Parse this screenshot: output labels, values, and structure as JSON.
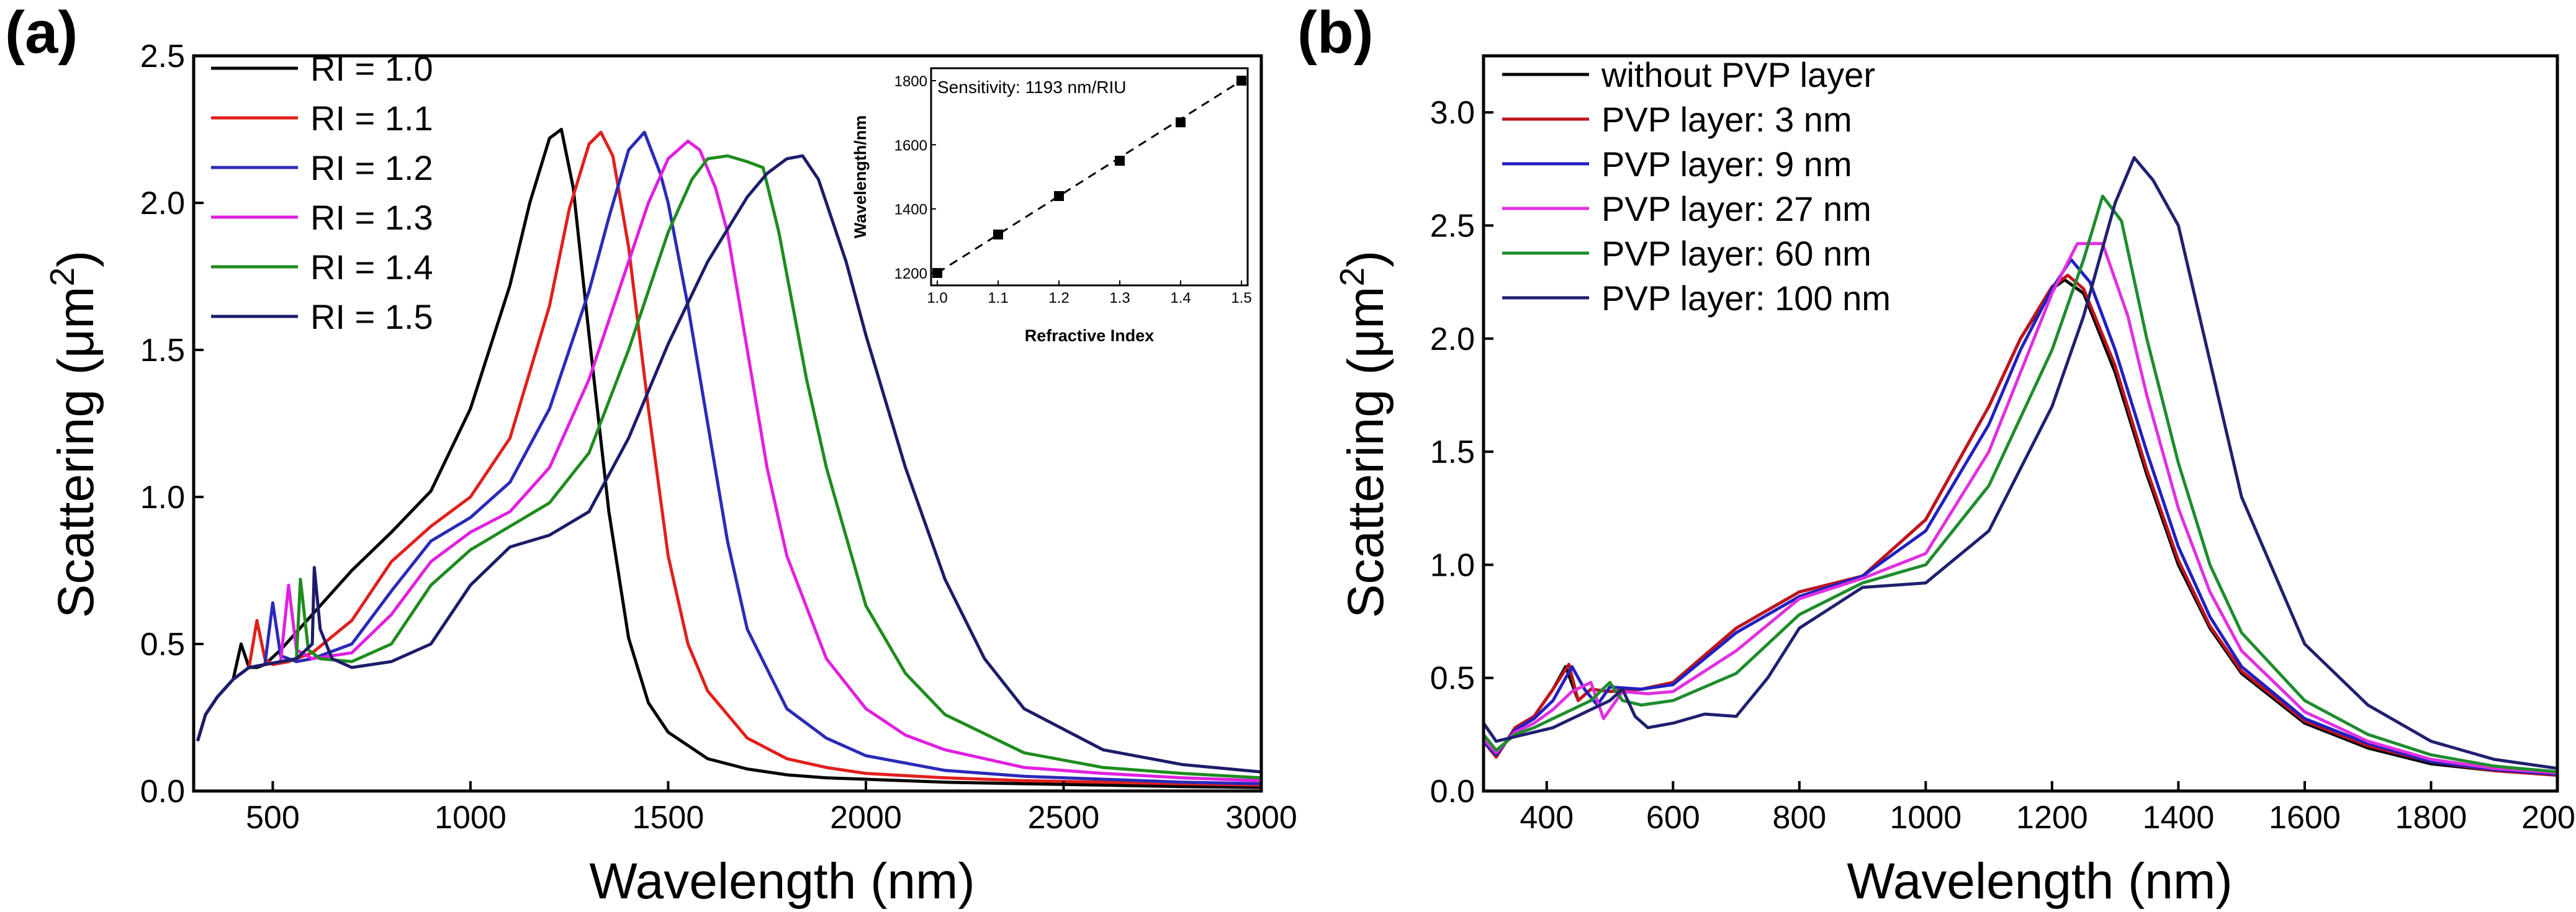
{
  "chart_data": [
    {
      "type": "line",
      "panel_label": "(a)",
      "xlabel": "Wavelength (nm)",
      "ylabel_base": "Scattering (μm",
      "ylabel_sup": "2",
      "ylabel_end": ")",
      "xlim": [
        300,
        3000
      ],
      "ylim": [
        0,
        2.5
      ],
      "xticks": [
        500,
        1000,
        1500,
        2000,
        2500,
        3000
      ],
      "yticks": [
        0.0,
        0.5,
        1.0,
        1.5,
        2.0,
        2.5
      ],
      "xtick_labels": [
        "500",
        "1000",
        "1500",
        "2000",
        "2500",
        "3000"
      ],
      "ytick_labels": [
        "0.0",
        "0.5",
        "1.0",
        "1.5",
        "2.0",
        "2.5"
      ],
      "legend_position": "top-left",
      "series": [
        {
          "name": "RI = 1.0",
          "color": "#000000",
          "shift": 0,
          "osc_peak": 430,
          "x": [
            310,
            330,
            360,
            400,
            420,
            440,
            460,
            480,
            520,
            600,
            700,
            800,
            900,
            1000,
            1100,
            1150,
            1200,
            1230,
            1260,
            1300,
            1350,
            1400,
            1450,
            1500,
            1600,
            1700,
            1800,
            1900,
            2000,
            2200,
            2400,
            2600,
            2800,
            3000
          ],
          "y": [
            0.17,
            0.26,
            0.32,
            0.38,
            0.5,
            0.42,
            0.42,
            0.43,
            0.48,
            0.6,
            0.75,
            0.88,
            1.02,
            1.3,
            1.72,
            2.0,
            2.22,
            2.25,
            2.05,
            1.55,
            0.95,
            0.52,
            0.3,
            0.2,
            0.11,
            0.075,
            0.055,
            0.045,
            0.04,
            0.03,
            0.025,
            0.02,
            0.015,
            0.012
          ]
        },
        {
          "name": "RI = 1.1",
          "color": "#e0201c",
          "shift": 100,
          "osc_peak": 470,
          "x": [
            310,
            330,
            360,
            400,
            440,
            460,
            480,
            500,
            540,
            600,
            700,
            800,
            900,
            1000,
            1100,
            1200,
            1250,
            1300,
            1330,
            1360,
            1400,
            1450,
            1500,
            1550,
            1600,
            1700,
            1800,
            1900,
            2000,
            2200,
            2400,
            2600,
            2800,
            3000
          ],
          "y": [
            0.17,
            0.26,
            0.32,
            0.38,
            0.42,
            0.58,
            0.45,
            0.43,
            0.44,
            0.47,
            0.58,
            0.78,
            0.9,
            1.0,
            1.2,
            1.65,
            1.98,
            2.2,
            2.24,
            2.16,
            1.85,
            1.3,
            0.8,
            0.5,
            0.34,
            0.18,
            0.11,
            0.08,
            0.06,
            0.045,
            0.035,
            0.03,
            0.025,
            0.02
          ]
        },
        {
          "name": "RI = 1.2",
          "color": "#2a2ab8",
          "shift": 230,
          "osc_peak": 505,
          "x": [
            310,
            330,
            360,
            400,
            440,
            480,
            500,
            520,
            560,
            600,
            700,
            800,
            900,
            1000,
            1100,
            1200,
            1300,
            1350,
            1400,
            1440,
            1480,
            1500,
            1550,
            1600,
            1650,
            1700,
            1800,
            1900,
            2000,
            2200,
            2400,
            2600,
            2800,
            3000
          ],
          "y": [
            0.17,
            0.26,
            0.32,
            0.38,
            0.42,
            0.43,
            0.64,
            0.46,
            0.44,
            0.45,
            0.5,
            0.68,
            0.85,
            0.93,
            1.05,
            1.3,
            1.7,
            1.95,
            2.18,
            2.24,
            2.1,
            2.0,
            1.65,
            1.25,
            0.85,
            0.55,
            0.28,
            0.18,
            0.12,
            0.07,
            0.05,
            0.04,
            0.03,
            0.025
          ]
        },
        {
          "name": "RI = 1.3",
          "color": "#e020e0",
          "shift": 350,
          "osc_peak": 540,
          "x": [
            310,
            330,
            360,
            400,
            440,
            480,
            520,
            540,
            560,
            600,
            700,
            800,
            900,
            1000,
            1100,
            1200,
            1300,
            1400,
            1450,
            1500,
            1550,
            1580,
            1620,
            1650,
            1700,
            1750,
            1800,
            1900,
            2000,
            2100,
            2200,
            2400,
            2600,
            2800,
            3000
          ],
          "y": [
            0.17,
            0.26,
            0.32,
            0.38,
            0.42,
            0.43,
            0.44,
            0.7,
            0.48,
            0.45,
            0.47,
            0.6,
            0.78,
            0.88,
            0.95,
            1.1,
            1.4,
            1.8,
            2.0,
            2.15,
            2.21,
            2.18,
            2.05,
            1.9,
            1.5,
            1.1,
            0.8,
            0.45,
            0.28,
            0.19,
            0.14,
            0.08,
            0.06,
            0.045,
            0.035
          ]
        },
        {
          "name": "RI = 1.4",
          "color": "#1e8c1e",
          "shift": 460,
          "osc_peak": 570,
          "x": [
            310,
            330,
            360,
            400,
            440,
            480,
            520,
            560,
            570,
            590,
            620,
            700,
            800,
            900,
            1000,
            1100,
            1200,
            1300,
            1400,
            1500,
            1560,
            1600,
            1650,
            1700,
            1740,
            1780,
            1850,
            1900,
            2000,
            2100,
            2200,
            2400,
            2600,
            2800,
            3000
          ],
          "y": [
            0.17,
            0.26,
            0.32,
            0.38,
            0.42,
            0.43,
            0.44,
            0.45,
            0.72,
            0.48,
            0.45,
            0.44,
            0.5,
            0.7,
            0.82,
            0.9,
            0.98,
            1.15,
            1.5,
            1.9,
            2.08,
            2.15,
            2.16,
            2.14,
            2.12,
            1.9,
            1.4,
            1.1,
            0.63,
            0.4,
            0.26,
            0.13,
            0.08,
            0.06,
            0.045
          ]
        },
        {
          "name": "RI = 1.5",
          "color": "#1c1c6a",
          "shift": 600,
          "osc_peak": 605,
          "x": [
            310,
            330,
            360,
            400,
            440,
            480,
            520,
            560,
            600,
            605,
            620,
            650,
            700,
            800,
            900,
            1000,
            1100,
            1200,
            1300,
            1400,
            1500,
            1600,
            1700,
            1750,
            1800,
            1840,
            1880,
            1900,
            1950,
            2000,
            2100,
            2200,
            2300,
            2400,
            2600,
            2800,
            3000
          ],
          "y": [
            0.17,
            0.26,
            0.32,
            0.38,
            0.42,
            0.43,
            0.44,
            0.45,
            0.5,
            0.76,
            0.55,
            0.45,
            0.42,
            0.44,
            0.5,
            0.7,
            0.83,
            0.87,
            0.95,
            1.2,
            1.52,
            1.8,
            2.02,
            2.1,
            2.15,
            2.16,
            2.08,
            2.0,
            1.8,
            1.55,
            1.1,
            0.72,
            0.45,
            0.28,
            0.14,
            0.09,
            0.065
          ]
        }
      ],
      "inset": {
        "annotation": "Sensitivity: 1193 nm/RIU",
        "xlabel": "Refractive Index",
        "ylabel": "Wavelength/nm",
        "xlim": [
          1.0,
          1.5
        ],
        "ylim": [
          1200,
          1800
        ],
        "xtick_labels": [
          "1.0",
          "1.1",
          "1.2",
          "1.3",
          "1.4",
          "1.5"
        ],
        "ytick_labels": [
          "1200",
          "1400",
          "1600",
          "1800"
        ],
        "x": [
          1.0,
          1.1,
          1.2,
          1.3,
          1.4,
          1.5
        ],
        "y": [
          1200,
          1320,
          1440,
          1550,
          1670,
          1800
        ]
      }
    },
    {
      "type": "line",
      "panel_label": "(b)",
      "xlabel": "Wavelength (nm)",
      "ylabel_base": "Scattering (μm",
      "ylabel_sup": "2",
      "ylabel_end": ")",
      "xlim": [
        300,
        2000
      ],
      "ylim": [
        0,
        3.25
      ],
      "xticks": [
        400,
        600,
        800,
        1000,
        1200,
        1400,
        1600,
        1800,
        2000
      ],
      "yticks": [
        0.0,
        0.5,
        1.0,
        1.5,
        2.0,
        2.5,
        3.0
      ],
      "xtick_labels": [
        "400",
        "600",
        "800",
        "1000",
        "1200",
        "1400",
        "1600",
        "1800",
        "2000"
      ],
      "ytick_labels": [
        "0.0",
        "0.5",
        "1.0",
        "1.5",
        "2.0",
        "2.5",
        "3.0"
      ],
      "legend_position": "top-left",
      "series": [
        {
          "name": "without PVP layer",
          "color": "#000000",
          "x": [
            300,
            320,
            350,
            380,
            410,
            430,
            450,
            470,
            500,
            550,
            600,
            700,
            800,
            900,
            1000,
            1100,
            1150,
            1200,
            1220,
            1250,
            1300,
            1350,
            1400,
            1450,
            1500,
            1600,
            1700,
            1800,
            1900,
            2000
          ],
          "y": [
            0.22,
            0.15,
            0.28,
            0.33,
            0.45,
            0.55,
            0.4,
            0.45,
            0.44,
            0.45,
            0.48,
            0.72,
            0.88,
            0.95,
            1.2,
            1.7,
            2.0,
            2.22,
            2.26,
            2.2,
            1.85,
            1.4,
            1.0,
            0.72,
            0.52,
            0.3,
            0.19,
            0.12,
            0.09,
            0.07
          ]
        },
        {
          "name": "PVP layer: 3 nm",
          "color": "#c0141c",
          "x": [
            300,
            320,
            350,
            380,
            410,
            435,
            450,
            470,
            500,
            550,
            600,
            700,
            800,
            900,
            1000,
            1100,
            1150,
            1200,
            1225,
            1250,
            1300,
            1350,
            1400,
            1450,
            1500,
            1600,
            1700,
            1800,
            1900,
            2000
          ],
          "y": [
            0.22,
            0.15,
            0.28,
            0.33,
            0.45,
            0.56,
            0.4,
            0.45,
            0.44,
            0.45,
            0.48,
            0.72,
            0.88,
            0.95,
            1.2,
            1.7,
            2.0,
            2.23,
            2.28,
            2.22,
            1.88,
            1.42,
            1.02,
            0.73,
            0.53,
            0.31,
            0.2,
            0.13,
            0.09,
            0.07
          ]
        },
        {
          "name": "PVP layer: 9 nm",
          "color": "#2020c0",
          "x": [
            300,
            320,
            350,
            380,
            410,
            440,
            460,
            480,
            500,
            550,
            600,
            700,
            800,
            900,
            1000,
            1100,
            1150,
            1200,
            1230,
            1260,
            1300,
            1350,
            1400,
            1450,
            1500,
            1600,
            1700,
            1800,
            1900,
            2000
          ],
          "y": [
            0.22,
            0.16,
            0.27,
            0.32,
            0.4,
            0.55,
            0.45,
            0.38,
            0.46,
            0.45,
            0.47,
            0.7,
            0.86,
            0.95,
            1.15,
            1.62,
            1.95,
            2.22,
            2.35,
            2.25,
            1.95,
            1.5,
            1.08,
            0.77,
            0.55,
            0.32,
            0.21,
            0.13,
            0.095,
            0.075
          ]
        },
        {
          "name": "PVP layer: 27 nm",
          "color": "#e030e0",
          "x": [
            300,
            320,
            350,
            380,
            410,
            440,
            470,
            490,
            520,
            560,
            600,
            700,
            800,
            900,
            1000,
            1100,
            1150,
            1200,
            1240,
            1280,
            1320,
            1350,
            1400,
            1450,
            1500,
            1600,
            1700,
            1800,
            1900,
            2000
          ],
          "y": [
            0.23,
            0.17,
            0.26,
            0.3,
            0.36,
            0.44,
            0.48,
            0.32,
            0.44,
            0.43,
            0.44,
            0.62,
            0.85,
            0.94,
            1.05,
            1.5,
            1.85,
            2.2,
            2.42,
            2.42,
            2.1,
            1.75,
            1.25,
            0.88,
            0.62,
            0.35,
            0.22,
            0.14,
            0.1,
            0.08
          ]
        },
        {
          "name": "PVP layer: 60 nm",
          "color": "#1e8c2e",
          "x": [
            300,
            320,
            350,
            380,
            410,
            440,
            470,
            500,
            520,
            550,
            600,
            700,
            800,
            900,
            1000,
            1100,
            1200,
            1250,
            1280,
            1310,
            1350,
            1400,
            1450,
            1500,
            1600,
            1700,
            1800,
            1900,
            2000
          ],
          "y": [
            0.25,
            0.18,
            0.25,
            0.28,
            0.32,
            0.36,
            0.4,
            0.48,
            0.4,
            0.38,
            0.4,
            0.52,
            0.78,
            0.92,
            1.0,
            1.35,
            1.95,
            2.35,
            2.63,
            2.52,
            2.0,
            1.45,
            1.0,
            0.7,
            0.4,
            0.25,
            0.16,
            0.11,
            0.085
          ]
        },
        {
          "name": "PVP layer: 100 nm",
          "color": "#202070",
          "x": [
            300,
            320,
            350,
            380,
            410,
            440,
            470,
            500,
            520,
            540,
            560,
            600,
            650,
            700,
            750,
            800,
            900,
            1000,
            1100,
            1200,
            1250,
            1300,
            1330,
            1360,
            1400,
            1450,
            1500,
            1600,
            1700,
            1800,
            1900,
            2000
          ],
          "y": [
            0.3,
            0.22,
            0.24,
            0.26,
            0.28,
            0.32,
            0.36,
            0.4,
            0.45,
            0.33,
            0.28,
            0.3,
            0.34,
            0.33,
            0.5,
            0.72,
            0.9,
            0.92,
            1.15,
            1.7,
            2.1,
            2.6,
            2.8,
            2.7,
            2.5,
            1.9,
            1.3,
            0.65,
            0.38,
            0.22,
            0.14,
            0.1
          ]
        }
      ]
    }
  ]
}
